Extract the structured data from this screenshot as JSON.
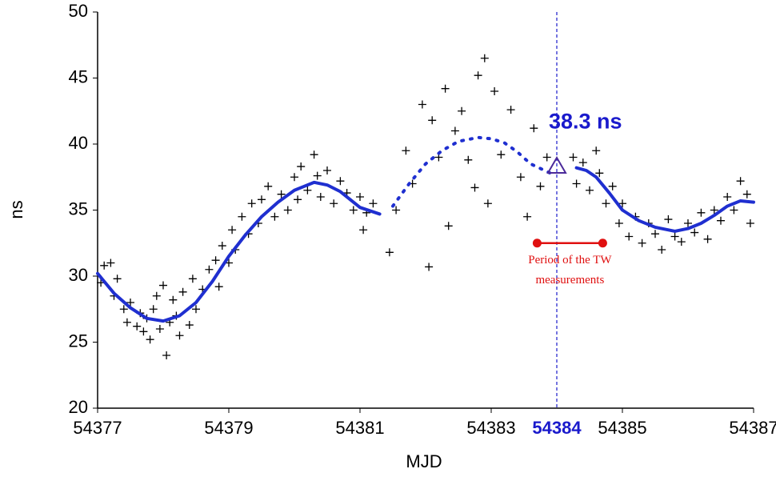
{
  "chart_data": {
    "type": "scatter",
    "x_label": "MJD",
    "y_label": "ns",
    "xlim": [
      54377,
      54387
    ],
    "ylim": [
      20,
      50
    ],
    "xticks": [
      54377,
      54379,
      54381,
      54383,
      54385,
      54387
    ],
    "yticks": [
      20,
      25,
      30,
      35,
      40,
      45,
      50
    ],
    "highlight_x": {
      "value": 54384,
      "color": "#1a1acc"
    },
    "marker": {
      "x": 54384,
      "y": 38.3,
      "label": "38.3 ns",
      "color": "#1a1acc",
      "edge": "#4b2a9a"
    },
    "period": {
      "x": [
        54383.7,
        54384.7
      ],
      "y": 32.5,
      "color": "#e01010",
      "lines": [
        "Period of the TW",
        "measurements"
      ]
    },
    "scatter": {
      "color": "#000000",
      "x": [
        54377.05,
        54377.1,
        54377.2,
        54377.25,
        54377.3,
        54377.4,
        54377.45,
        54377.5,
        54377.6,
        54377.65,
        54377.7,
        54377.75,
        54377.8,
        54377.85,
        54377.9,
        54377.95,
        54378.0,
        54378.05,
        54378.1,
        54378.15,
        54378.2,
        54378.25,
        54378.3,
        54378.4,
        54378.45,
        54378.5,
        54378.6,
        54378.7,
        54378.8,
        54378.85,
        54378.9,
        54379.0,
        54379.05,
        54379.1,
        54379.2,
        54379.3,
        54379.35,
        54379.45,
        54379.5,
        54379.6,
        54379.7,
        54379.8,
        54379.9,
        54380.0,
        54380.05,
        54380.1,
        54380.2,
        54380.3,
        54380.35,
        54380.4,
        54380.5,
        54380.6,
        54380.7,
        54380.8,
        54380.9,
        54381.0,
        54381.05,
        54381.1,
        54381.2,
        54381.45,
        54381.55,
        54381.7,
        54381.8,
        54381.95,
        54382.05,
        54382.1,
        54382.2,
        54382.3,
        54382.35,
        54382.45,
        54382.55,
        54382.65,
        54382.75,
        54382.8,
        54382.9,
        54382.95,
        54383.05,
        54383.15,
        54383.3,
        54383.45,
        54383.55,
        54383.65,
        54383.75,
        54383.85,
        54384.25,
        54384.3,
        54384.4,
        54384.5,
        54384.6,
        54384.65,
        54384.75,
        54384.85,
        54384.95,
        54385.0,
        54385.1,
        54385.2,
        54385.3,
        54385.4,
        54385.5,
        54385.6,
        54385.7,
        54385.8,
        54385.9,
        54386.0,
        54386.1,
        54386.2,
        54386.3,
        54386.4,
        54386.5,
        54386.6,
        54386.7,
        54386.8,
        54386.9,
        54386.95
      ],
      "values": [
        29.5,
        30.8,
        31.0,
        28.5,
        29.8,
        27.5,
        26.5,
        28.0,
        26.2,
        27.2,
        25.8,
        26.8,
        25.2,
        27.5,
        28.5,
        26.0,
        29.3,
        24.0,
        26.5,
        28.2,
        27.0,
        25.5,
        28.8,
        26.3,
        29.8,
        27.5,
        29.0,
        30.5,
        31.2,
        29.2,
        32.3,
        31.0,
        33.5,
        32.0,
        34.5,
        33.2,
        35.5,
        34.0,
        35.8,
        36.8,
        34.5,
        36.2,
        35.0,
        37.5,
        35.8,
        38.3,
        36.5,
        39.2,
        37.6,
        36.0,
        38.0,
        35.5,
        37.2,
        36.3,
        35.0,
        36.0,
        33.5,
        34.8,
        35.5,
        31.8,
        35.0,
        39.5,
        37.0,
        43.0,
        30.7,
        41.8,
        39.0,
        44.2,
        33.8,
        41.0,
        42.5,
        38.8,
        36.7,
        45.2,
        46.5,
        35.5,
        44.0,
        39.2,
        42.6,
        37.5,
        34.5,
        41.2,
        36.8,
        39.0,
        39.0,
        37.0,
        38.6,
        36.5,
        39.5,
        37.8,
        35.5,
        36.8,
        34.0,
        35.5,
        33.0,
        34.5,
        32.5,
        34.0,
        33.2,
        32.0,
        34.3,
        33.0,
        32.6,
        34.0,
        33.3,
        34.8,
        32.8,
        35.0,
        34.2,
        36.0,
        35.0,
        37.2,
        36.2,
        34.0
      ]
    },
    "series": [
      {
        "color": "#1f2fd0",
        "dash": false,
        "x": [
          54377,
          54377.25,
          54377.5,
          54377.75,
          54378,
          54378.25,
          54378.5,
          54378.75,
          54379,
          54379.25,
          54379.5,
          54379.75,
          54380,
          54380.3,
          54380.5,
          54380.7,
          54381,
          54381.3
        ],
        "values": [
          30.2,
          28.7,
          27.6,
          26.8,
          26.6,
          27.0,
          28.0,
          29.6,
          31.5,
          33.1,
          34.5,
          35.6,
          36.5,
          37.1,
          36.9,
          36.4,
          35.2,
          34.7
        ]
      },
      {
        "color": "#1f2fd0",
        "dash": true,
        "x": [
          54381.5,
          54381.75,
          54382,
          54382.25,
          54382.5,
          54382.8,
          54383,
          54383.2,
          54383.4,
          54383.6,
          54383.9
        ],
        "values": [
          35.3,
          37.0,
          38.5,
          39.5,
          40.2,
          40.5,
          40.4,
          40.1,
          39.4,
          38.5,
          37.8
        ]
      },
      {
        "color": "#1f2fd0",
        "dash": false,
        "x": [
          54384.3,
          54384.45,
          54384.6,
          54384.8,
          54385,
          54385.25,
          54385.5,
          54385.8,
          54386,
          54386.2,
          54386.4,
          54386.6,
          54386.8,
          54387
        ],
        "values": [
          38.2,
          38.0,
          37.5,
          36.3,
          35.0,
          34.2,
          33.7,
          33.4,
          33.6,
          34.0,
          34.6,
          35.3,
          35.7,
          35.6
        ]
      }
    ]
  }
}
